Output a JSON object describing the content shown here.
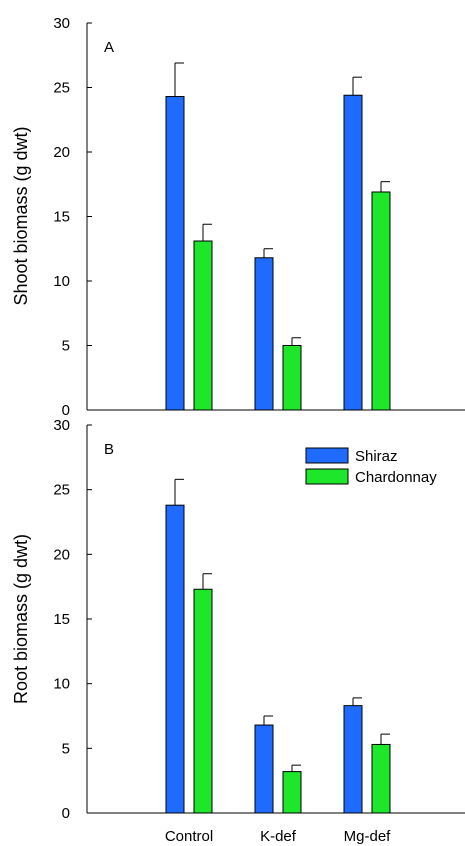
{
  "chart_data": [
    {
      "type": "bar",
      "panel_label": "A",
      "ylabel": "Shoot biomass (g dwt)",
      "ylim": [
        0,
        30
      ],
      "yticks": [
        0,
        5,
        10,
        15,
        20,
        25,
        30
      ],
      "categories": [
        "Control",
        "K-def",
        "Mg-def"
      ],
      "series": [
        {
          "name": "Shiraz",
          "color": "#1f6bff",
          "values": [
            24.3,
            11.8,
            24.4
          ],
          "errors": [
            2.6,
            0.7,
            1.4
          ]
        },
        {
          "name": "Chardonnay",
          "color": "#1ee62a",
          "values": [
            13.1,
            5.0,
            16.9
          ],
          "errors": [
            1.3,
            0.6,
            0.8
          ]
        }
      ],
      "show_category_labels": false,
      "legend": false
    },
    {
      "type": "bar",
      "panel_label": "B",
      "ylabel": "Root biomass (g dwt)",
      "ylim": [
        0,
        30
      ],
      "yticks": [
        0,
        5,
        10,
        15,
        20,
        25,
        30
      ],
      "categories": [
        "Control",
        "K-def",
        "Mg-def"
      ],
      "series": [
        {
          "name": "Shiraz",
          "color": "#1f6bff",
          "values": [
            23.8,
            6.8,
            8.3
          ],
          "errors": [
            2.0,
            0.7,
            0.6
          ]
        },
        {
          "name": "Chardonnay",
          "color": "#1ee62a",
          "values": [
            17.3,
            3.2,
            5.3
          ],
          "errors": [
            1.2,
            0.5,
            0.8
          ]
        }
      ],
      "show_category_labels": true,
      "legend": true,
      "legend_position": "top-right"
    }
  ]
}
